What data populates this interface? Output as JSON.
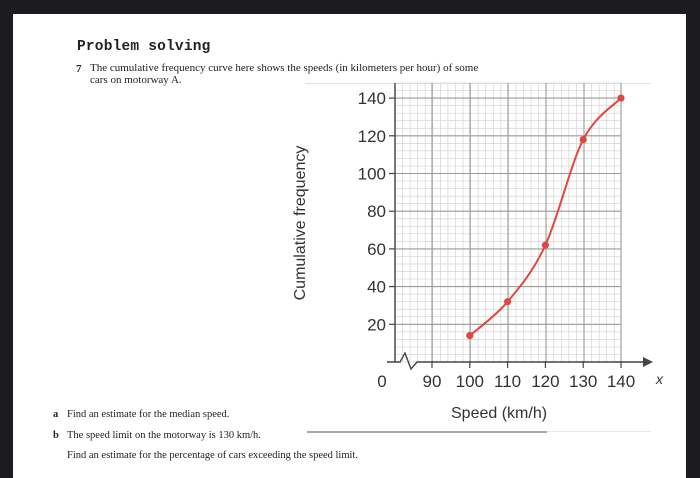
{
  "section_heading": "Problem solving",
  "question": {
    "number": "7",
    "text": "The cumulative frequency curve here shows the speeds (in kilometers per hour) of some cars on motorway A."
  },
  "parts": [
    {
      "letter": "a",
      "text": "Find an estimate for the median speed."
    },
    {
      "letter": "b",
      "text": "The speed limit on the motorway is 130 km/h."
    },
    {
      "letter": "",
      "text": "Find an estimate for the percentage of cars exceeding the speed limit."
    }
  ],
  "colors": {
    "curve": "#e0483f",
    "axis": "#444444",
    "grid_major": "#9a9a9a",
    "grid_minor": "#d4d4d4"
  },
  "chart_data": {
    "type": "line",
    "title": "",
    "xlabel": "Speed (km/h)",
    "ylabel": "Cumulative frequency",
    "x_axis_variable": "x",
    "x_ticks": [
      "0",
      "90",
      "100",
      "110",
      "120",
      "130",
      "140"
    ],
    "y_ticks": [
      "20",
      "40",
      "60",
      "80",
      "100",
      "120",
      "140"
    ],
    "x_axis_break": true,
    "xlim": [
      80,
      140
    ],
    "ylim": [
      0,
      140
    ],
    "grid": true,
    "series": [
      {
        "name": "Cumulative frequency",
        "x": [
          100,
          110,
          120,
          130,
          140
        ],
        "values": [
          14,
          32,
          62,
          118,
          140
        ]
      }
    ]
  }
}
